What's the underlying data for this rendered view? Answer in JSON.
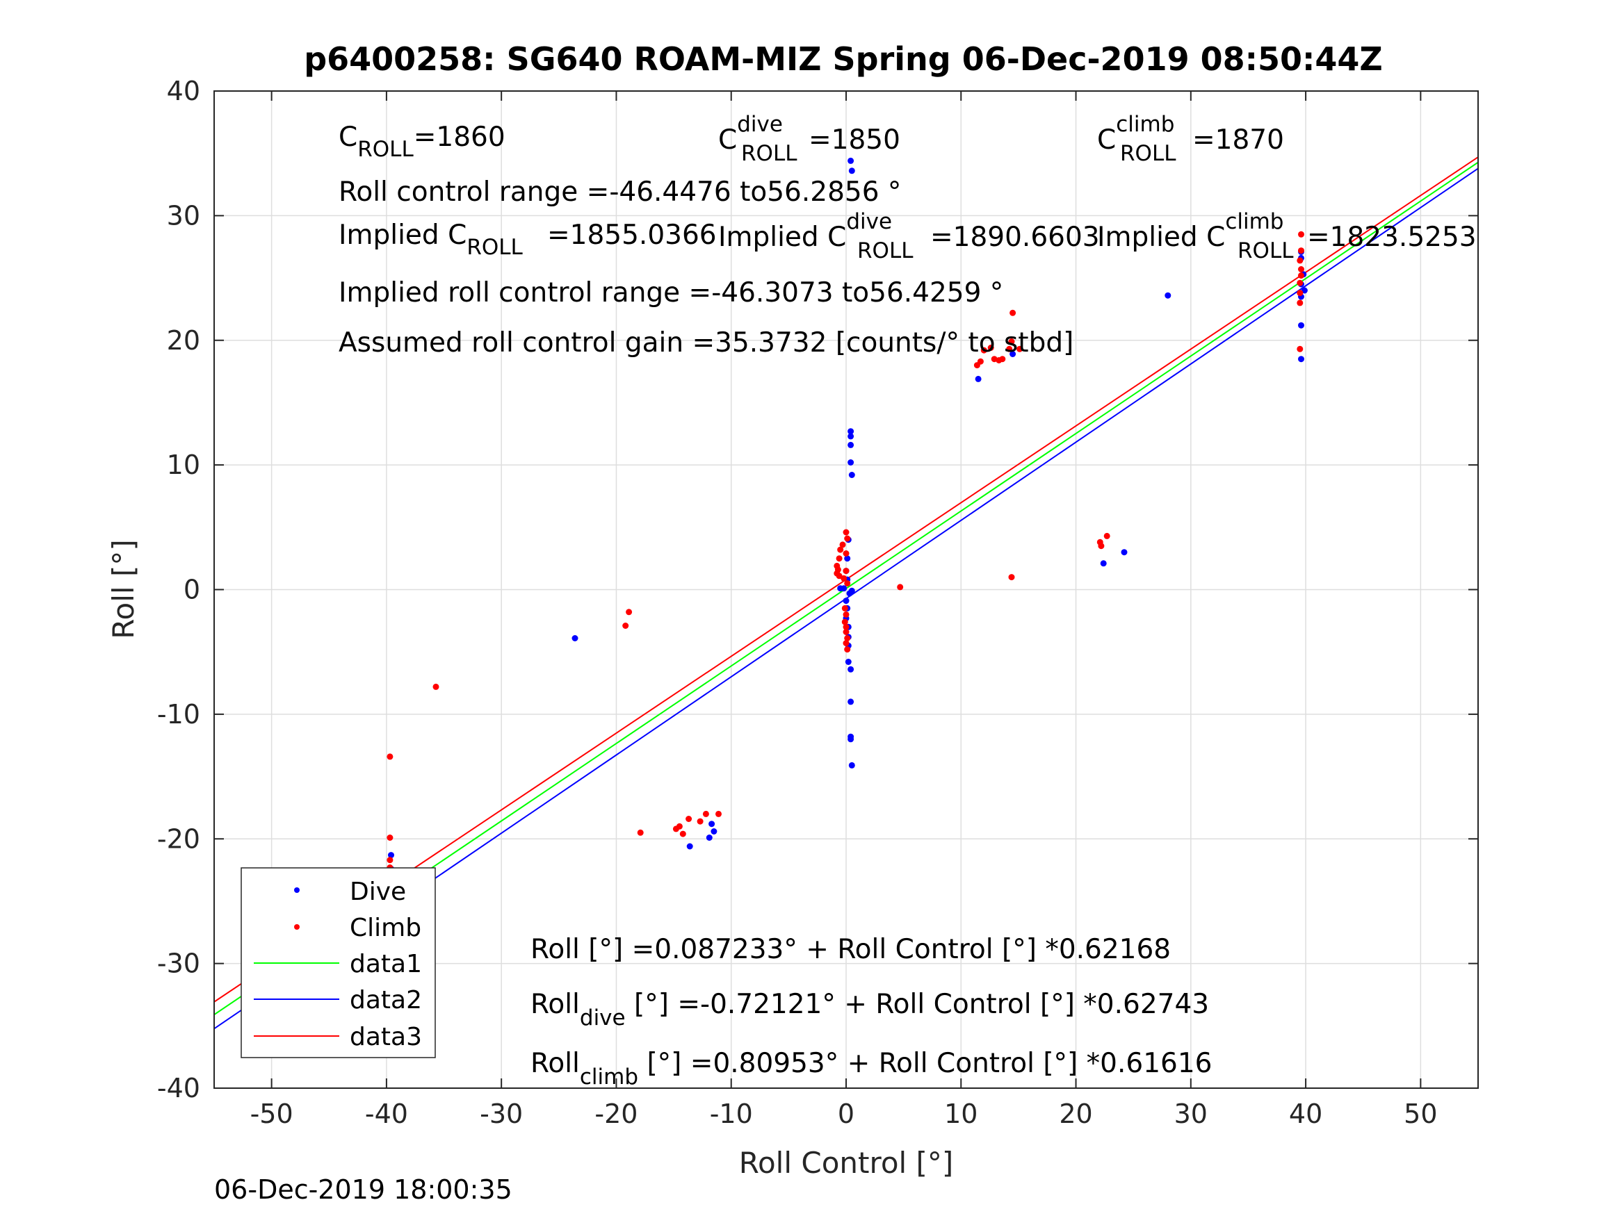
{
  "chart_data": {
    "type": "scatter",
    "title": "p6400258: SG640 ROAM-MIZ Spring 06-Dec-2019 08:50:44Z",
    "xlabel": "Roll Control [°]",
    "ylabel": "Roll [°]",
    "xlim": [
      -55,
      55
    ],
    "ylim": [
      -40,
      40
    ],
    "xticks": [
      -50,
      -40,
      -30,
      -20,
      -10,
      0,
      10,
      20,
      30,
      40,
      50
    ],
    "yticks": [
      -40,
      -30,
      -20,
      -10,
      0,
      10,
      20,
      30,
      40
    ],
    "grid": true,
    "legend_position": "bottom-left",
    "series": [
      {
        "name": "Dive",
        "kind": "points",
        "color": "#0000ff",
        "points": [
          [
            0.4,
            34.4
          ],
          [
            0.5,
            33.6
          ],
          [
            0.4,
            12.7
          ],
          [
            0.4,
            12.3
          ],
          [
            0.4,
            11.6
          ],
          [
            0.4,
            10.2
          ],
          [
            0.5,
            9.2
          ],
          [
            0.2,
            4.0
          ],
          [
            0.1,
            2.5
          ],
          [
            0.0,
            1.5
          ],
          [
            0.1,
            0.8
          ],
          [
            -0.2,
            0.1
          ],
          [
            -0.5,
            0.1
          ],
          [
            0.5,
            -0.1
          ],
          [
            0.3,
            -0.3
          ],
          [
            0.0,
            -0.9
          ],
          [
            0.1,
            -1.5
          ],
          [
            0.0,
            -2.3
          ],
          [
            0.2,
            -3.0
          ],
          [
            0.2,
            -3.8
          ],
          [
            0.2,
            -4.5
          ],
          [
            0.2,
            -5.8
          ],
          [
            0.4,
            -6.4
          ],
          [
            0.4,
            -9.0
          ],
          [
            0.4,
            -11.8
          ],
          [
            0.4,
            -12.0
          ],
          [
            0.5,
            -14.1
          ],
          [
            -23.6,
            -3.9
          ],
          [
            -39.6,
            -21.3
          ],
          [
            -39.6,
            -22.4
          ],
          [
            -39.7,
            -23.5
          ],
          [
            -39.6,
            -24.6
          ],
          [
            -39.7,
            -25.5
          ],
          [
            -39.6,
            -26.0
          ],
          [
            -39.6,
            -26.3
          ],
          [
            -13.6,
            -20.6
          ],
          [
            -11.9,
            -19.9
          ],
          [
            -11.5,
            -19.4
          ],
          [
            -11.7,
            -18.8
          ],
          [
            11.5,
            16.9
          ],
          [
            14.5,
            18.9
          ],
          [
            22.4,
            2.1
          ],
          [
            24.2,
            3.0
          ],
          [
            28.0,
            23.6
          ],
          [
            39.6,
            27.1
          ],
          [
            39.6,
            26.6
          ],
          [
            39.8,
            25.3
          ],
          [
            39.6,
            24.5
          ],
          [
            39.9,
            24.0
          ],
          [
            39.6,
            23.5
          ],
          [
            39.6,
            21.2
          ],
          [
            39.6,
            18.5
          ]
        ]
      },
      {
        "name": "Climb",
        "kind": "points",
        "color": "#ff0000",
        "points": [
          [
            0.0,
            4.6
          ],
          [
            0.1,
            4.1
          ],
          [
            -0.3,
            3.6
          ],
          [
            -0.5,
            3.2
          ],
          [
            0.0,
            2.9
          ],
          [
            -0.6,
            2.5
          ],
          [
            -0.8,
            1.9
          ],
          [
            -0.7,
            1.6
          ],
          [
            -0.8,
            1.3
          ],
          [
            -0.6,
            1.1
          ],
          [
            -0.2,
            0.9
          ],
          [
            0.0,
            1.5
          ],
          [
            0.1,
            0.5
          ],
          [
            -0.1,
            -1.5
          ],
          [
            0.0,
            -2.0
          ],
          [
            -0.1,
            -2.6
          ],
          [
            0.0,
            -3.0
          ],
          [
            0.0,
            -3.4
          ],
          [
            0.1,
            -3.9
          ],
          [
            0.0,
            -4.3
          ],
          [
            0.1,
            -4.8
          ],
          [
            4.7,
            0.2
          ],
          [
            -18.9,
            -1.8
          ],
          [
            -19.2,
            -2.9
          ],
          [
            -35.7,
            -7.8
          ],
          [
            -39.7,
            -13.4
          ],
          [
            -39.7,
            -19.9
          ],
          [
            -39.7,
            -21.7
          ],
          [
            -39.7,
            -22.3
          ],
          [
            -39.6,
            -22.9
          ],
          [
            -39.7,
            -23.5
          ],
          [
            -39.7,
            -24.2
          ],
          [
            -39.7,
            -24.7
          ],
          [
            -39.5,
            -25.3
          ],
          [
            -17.9,
            -19.5
          ],
          [
            -14.8,
            -19.2
          ],
          [
            -14.5,
            -19.0
          ],
          [
            -14.2,
            -19.6
          ],
          [
            -13.7,
            -18.4
          ],
          [
            -12.7,
            -18.6
          ],
          [
            -12.2,
            -18.0
          ],
          [
            -11.1,
            -18.0
          ],
          [
            11.4,
            18.0
          ],
          [
            11.7,
            18.3
          ],
          [
            12.0,
            19.2
          ],
          [
            12.6,
            19.4
          ],
          [
            12.9,
            18.5
          ],
          [
            13.3,
            18.4
          ],
          [
            13.6,
            18.5
          ],
          [
            14.2,
            19.3
          ],
          [
            14.4,
            19.9
          ],
          [
            14.5,
            22.2
          ],
          [
            15.1,
            19.3
          ],
          [
            14.4,
            1.0
          ],
          [
            22.1,
            3.8
          ],
          [
            22.2,
            3.5
          ],
          [
            22.7,
            4.3
          ],
          [
            39.6,
            28.5
          ],
          [
            39.6,
            27.2
          ],
          [
            39.5,
            26.4
          ],
          [
            39.6,
            25.7
          ],
          [
            39.6,
            25.2
          ],
          [
            39.5,
            24.6
          ],
          [
            39.5,
            23.8
          ],
          [
            39.5,
            23.0
          ],
          [
            39.5,
            19.3
          ]
        ]
      },
      {
        "name": "data1",
        "kind": "line",
        "color": "#00ff00",
        "intercept": 0.087233,
        "slope": 0.62168
      },
      {
        "name": "data2",
        "kind": "line",
        "color": "#0000ff",
        "intercept": -0.72121,
        "slope": 0.62743
      },
      {
        "name": "data3",
        "kind": "line",
        "color": "#ff0000",
        "intercept": 0.80953,
        "slope": 0.61616
      }
    ]
  },
  "annotations": {
    "croll": {
      "main": "C",
      "sub": "ROLL",
      "tail": "=1860"
    },
    "croll_dive": {
      "main": "C",
      "sup": "dive",
      "sub": "ROLL",
      "tail": "=1850"
    },
    "croll_climb": {
      "main": "C",
      "sup": "climb",
      "sub": "ROLL",
      "tail": "=1870"
    },
    "roll_range": "Roll control range =-46.4476 to56.2856 °",
    "implied_croll": {
      "main": "Implied C",
      "sub": "ROLL",
      "tail": "=1855.0366"
    },
    "implied_croll_dive": {
      "main": "Implied C",
      "sup": "dive",
      "sub": "ROLL",
      "tail": "=1890.6603"
    },
    "implied_croll_climb": {
      "main": "Implied C",
      "sup": "climb",
      "sub": "ROLL",
      "tail": "=1823.5253"
    },
    "implied_range": "Implied roll control range =-46.3073 to56.4259 °",
    "gain": "Assumed roll control gain =35.3732 [counts/° to stbd]",
    "eq_all": "Roll [°] =0.087233° + Roll Control [°] *0.62168",
    "eq_dive": {
      "main": "Roll",
      "sub": "dive",
      "tail": " [°] =-0.72121° + Roll Control [°] *0.62743"
    },
    "eq_climb": {
      "main": "Roll",
      "sub": "climb",
      "tail": " [°] =0.80953° + Roll Control [°] *0.61616"
    }
  },
  "timestamp": "06-Dec-2019 18:00:35"
}
